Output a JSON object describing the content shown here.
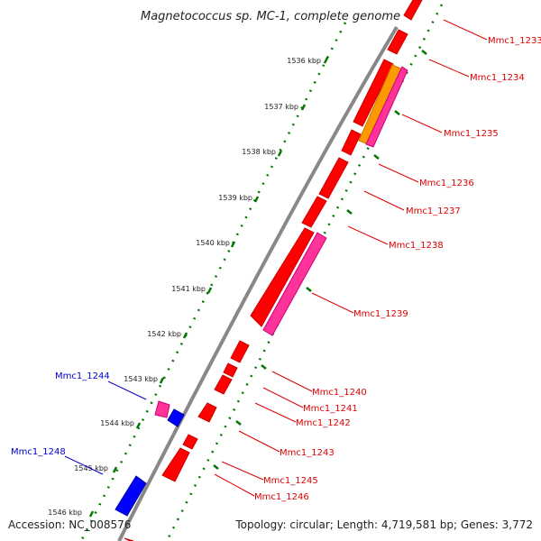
{
  "title": "Magnetococcus sp. MC-1, complete genome",
  "accession": "Accession: NC_008576",
  "topology": "Topology: circular; Length: 4,719,581 bp; Genes: 3,772",
  "kbp_labels": [
    "1536 kbp",
    "1537 kbp",
    "1538 kbp",
    "1539 kbp",
    "1540 kbp",
    "1541 kbp",
    "1542 kbp",
    "1543 kbp",
    "1544 kbp",
    "1545 kbp",
    "1546 kbp"
  ],
  "genes": [
    {
      "name": "Mmc1_1233",
      "color": "#dd0000"
    },
    {
      "name": "Mmc1_1234",
      "color": "#dd0000"
    },
    {
      "name": "Mmc1_1235",
      "color": "#dd0000"
    },
    {
      "name": "Mmc1_1236",
      "color": "#dd0000"
    },
    {
      "name": "Mmc1_1237",
      "color": "#dd0000"
    },
    {
      "name": "Mmc1_1238",
      "color": "#dd0000"
    },
    {
      "name": "Mmc1_1239",
      "color": "#dd0000"
    },
    {
      "name": "Mmc1_1240",
      "color": "#dd0000"
    },
    {
      "name": "Mmc1_1241",
      "color": "#dd0000"
    },
    {
      "name": "Mmc1_1242",
      "color": "#dd0000"
    },
    {
      "name": "Mmc1_1243",
      "color": "#dd0000"
    },
    {
      "name": "Mmc1_1245",
      "color": "#dd0000"
    },
    {
      "name": "Mmc1_1246",
      "color": "#dd0000"
    },
    {
      "name": "Mmc1_1244",
      "color": "#0000cc"
    },
    {
      "name": "Mmc1_1248",
      "color": "#0000cc"
    }
  ],
  "colors": {
    "forward_gene": "#ff0000",
    "reverse_gene": "#0000ff",
    "rna": "#ff3399",
    "misc": "#ff9900",
    "backbone": "#888888",
    "ticks": "#007700"
  }
}
